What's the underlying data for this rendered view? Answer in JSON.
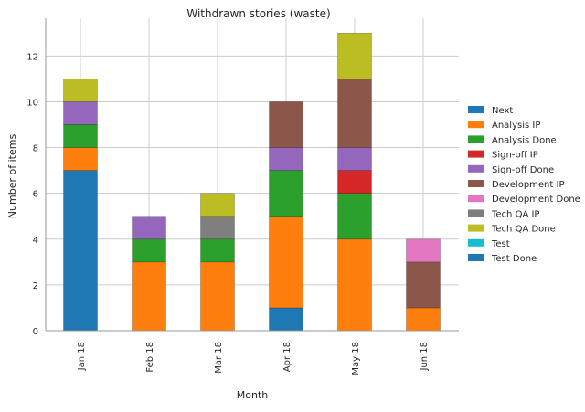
{
  "chart_data": {
    "type": "bar",
    "stacked": true,
    "title": "Withdrawn stories (waste)",
    "xlabel": "Month",
    "ylabel": "Number of items",
    "ylim": [
      0,
      13.65
    ],
    "yticks": [
      0,
      2,
      4,
      6,
      8,
      10,
      12
    ],
    "grid": true,
    "legend_position": "right",
    "categories": [
      "Jan 18",
      "Feb 18",
      "Mar 18",
      "Apr 18",
      "May 18",
      "Jun 18"
    ],
    "series": [
      {
        "name": "Next",
        "color": "#1f77b4",
        "values": [
          7,
          0,
          0,
          1,
          0,
          0
        ]
      },
      {
        "name": "Analysis IP",
        "color": "#ff7f0e",
        "values": [
          1,
          3,
          3,
          4,
          4,
          1
        ]
      },
      {
        "name": "Analysis Done",
        "color": "#2ca02c",
        "values": [
          1,
          1,
          1,
          2,
          2,
          0
        ]
      },
      {
        "name": "Sign-off IP",
        "color": "#d62728",
        "values": [
          0,
          0,
          0,
          0,
          1,
          0
        ]
      },
      {
        "name": "Sign-off Done",
        "color": "#9467bd",
        "values": [
          1,
          1,
          0,
          1,
          1,
          0
        ]
      },
      {
        "name": "Development IP",
        "color": "#8c564b",
        "values": [
          0,
          0,
          0,
          2,
          3,
          2
        ]
      },
      {
        "name": "Development Done",
        "color": "#e377c2",
        "values": [
          0,
          0,
          0,
          0,
          0,
          1
        ]
      },
      {
        "name": "Tech QA IP",
        "color": "#7f7f7f",
        "values": [
          0,
          0,
          1,
          0,
          0,
          0
        ]
      },
      {
        "name": "Tech QA Done",
        "color": "#bcbd22",
        "values": [
          1,
          0,
          1,
          0,
          2,
          0
        ]
      },
      {
        "name": "Test",
        "color": "#17becf",
        "values": [
          0,
          0,
          0,
          0,
          0,
          0
        ]
      },
      {
        "name": "Test Done",
        "color": "#1f77b4",
        "values": [
          0,
          0,
          0,
          0,
          0,
          0
        ]
      }
    ]
  }
}
